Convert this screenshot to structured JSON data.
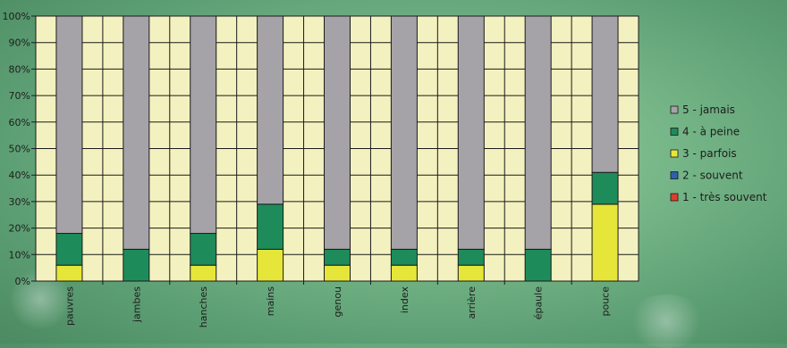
{
  "chart_data": {
    "type": "bar",
    "stacked": true,
    "normalized": true,
    "categories": [
      "pauvres",
      "jambes",
      "hanches",
      "mains",
      "genou",
      "index",
      "arrière",
      "épaule",
      "pouce"
    ],
    "series": [
      {
        "name": "1 - très souvent",
        "color": "#e23b2e",
        "values": [
          0,
          0,
          0,
          0,
          0,
          0,
          0,
          0,
          0
        ]
      },
      {
        "name": "2 - souvent",
        "color": "#2f5fb0",
        "values": [
          0,
          0,
          0,
          0,
          0,
          0,
          0,
          0,
          0
        ]
      },
      {
        "name": "3 - parfois",
        "color": "#e6e63a",
        "values": [
          6,
          0,
          6,
          12,
          6,
          6,
          6,
          0,
          29
        ]
      },
      {
        "name": "4 - à peine",
        "color": "#1e8c5a",
        "values": [
          12,
          12,
          12,
          17,
          6,
          6,
          6,
          12,
          12
        ]
      },
      {
        "name": "5 - jamais",
        "color": "#a5a3a8",
        "values": [
          82,
          88,
          82,
          71,
          88,
          88,
          88,
          88,
          59
        ]
      }
    ],
    "yticks": [
      "0%",
      "10%",
      "20%",
      "30%",
      "40%",
      "50%",
      "60%",
      "70%",
      "80%",
      "90%",
      "100%"
    ],
    "ylim": [
      0,
      100
    ],
    "grid": true,
    "legend_position": "right",
    "plot_background": "#f3f1bf",
    "title": "",
    "xlabel": "",
    "ylabel": ""
  }
}
